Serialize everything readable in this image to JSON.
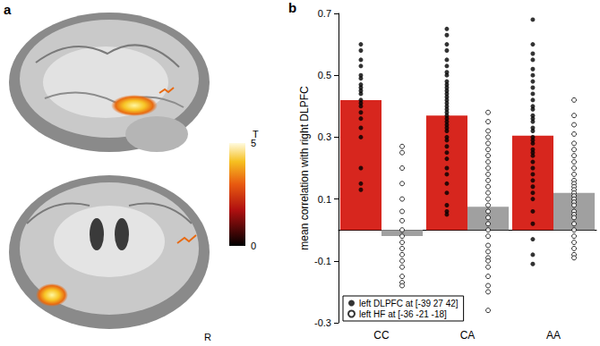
{
  "chart_data": {
    "type": "bar",
    "panel_label": "b",
    "ylabel": "mean correlation with right DLPFC",
    "categories": [
      "CC",
      "CA",
      "AA"
    ],
    "ylim": [
      -0.3,
      0.7
    ],
    "yticks": [
      -0.3,
      -0.1,
      0.1,
      0.3,
      0.5,
      0.7
    ],
    "grid": false,
    "legend": "lower left",
    "series": [
      {
        "name": "left DLPFC at [-39 27 42]",
        "color": "#d7261e",
        "marker": "circle",
        "values": [
          0.42,
          0.37,
          0.305
        ],
        "points": [
          [
            0.6,
            0.58,
            0.55,
            0.53,
            0.5,
            0.49,
            0.47,
            0.46,
            0.45,
            0.44,
            0.42,
            0.41,
            0.4,
            0.38,
            0.36,
            0.33,
            0.3,
            0.2,
            0.15,
            0.13
          ],
          [
            0.65,
            0.63,
            0.6,
            0.58,
            0.55,
            0.53,
            0.51,
            0.5,
            0.48,
            0.47,
            0.46,
            0.45,
            0.44,
            0.43,
            0.42,
            0.41,
            0.4,
            0.39,
            0.38,
            0.37,
            0.36,
            0.35,
            0.34,
            0.33,
            0.32,
            0.3,
            0.29,
            0.27,
            0.25,
            0.23,
            0.2,
            0.18,
            0.15,
            0.12,
            0.08,
            0.06,
            0.05
          ],
          [
            0.68,
            0.6,
            0.57,
            0.55,
            0.52,
            0.5,
            0.48,
            0.46,
            0.44,
            0.42,
            0.4,
            0.39,
            0.37,
            0.36,
            0.35,
            0.33,
            0.32,
            0.3,
            0.29,
            0.28,
            0.26,
            0.25,
            0.24,
            0.22,
            0.2,
            0.18,
            0.16,
            0.14,
            0.12,
            0.1,
            0.06,
            0.02,
            -0.03,
            -0.08,
            -0.11
          ]
        ]
      },
      {
        "name": "left HF at [-36 -21 -18]",
        "color": "#a0a0a0",
        "marker": "open_circle",
        "values": [
          -0.02,
          0.075,
          0.12
        ],
        "points": [
          [
            0.27,
            0.25,
            0.2,
            0.15,
            0.1,
            0.06,
            0.03,
            0.0,
            -0.02,
            -0.04,
            -0.06,
            -0.08,
            -0.1,
            -0.12,
            -0.15,
            -0.17,
            -0.18
          ],
          [
            0.38,
            0.35,
            0.32,
            0.3,
            0.28,
            0.26,
            0.24,
            0.22,
            0.2,
            0.18,
            0.16,
            0.14,
            0.12,
            0.1,
            0.08,
            0.06,
            0.04,
            0.02,
            0.0,
            -0.02,
            -0.05,
            -0.07,
            -0.09,
            -0.1,
            -0.12,
            -0.15,
            -0.18,
            -0.2,
            -0.26
          ],
          [
            0.42,
            0.37,
            0.34,
            0.31,
            0.28,
            0.26,
            0.24,
            0.22,
            0.2,
            0.18,
            0.16,
            0.15,
            0.14,
            0.13,
            0.12,
            0.11,
            0.1,
            0.09,
            0.08,
            0.06,
            0.05,
            0.04,
            0.02,
            0.0,
            -0.02,
            -0.04,
            -0.06,
            -0.08,
            -0.09
          ]
        ]
      }
    ]
  },
  "panel_a": {
    "label": "a",
    "side_label": "R",
    "colorbar": {
      "title": "T",
      "range": [
        0,
        5
      ],
      "ticks": [
        0,
        5
      ]
    }
  }
}
